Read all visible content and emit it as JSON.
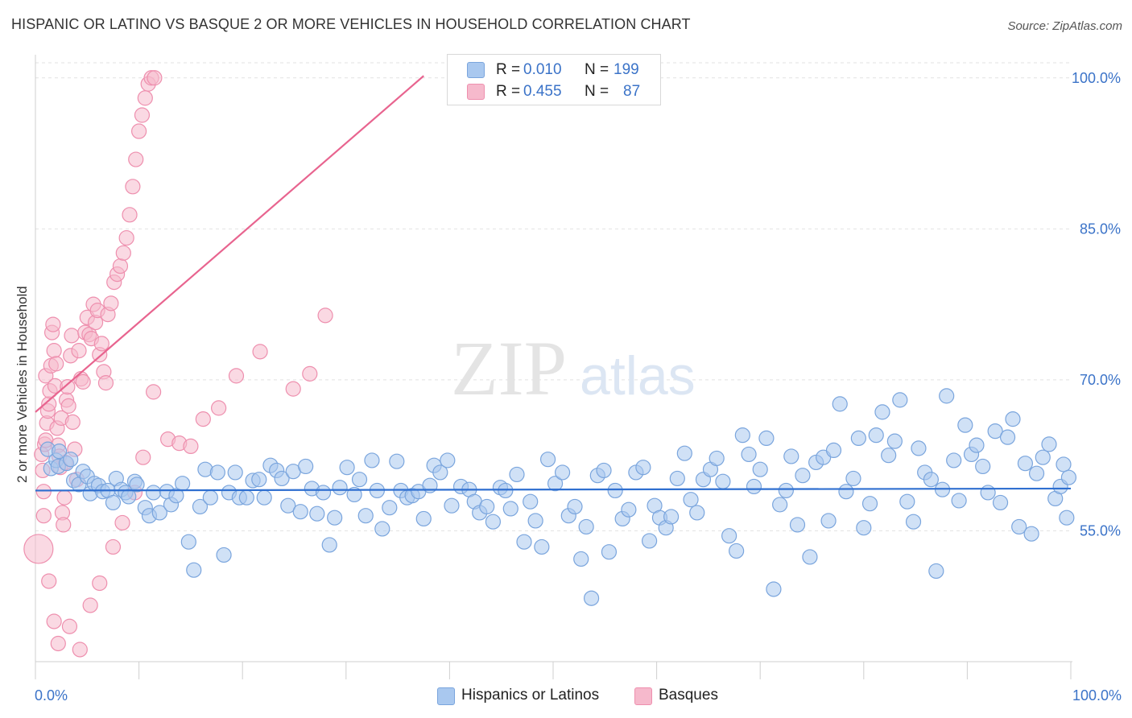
{
  "title": "HISPANIC OR LATINO VS BASQUE 2 OR MORE VEHICLES IN HOUSEHOLD CORRELATION CHART",
  "source": "Source: ZipAtlas.com",
  "watermark": {
    "zip": "ZIP",
    "atlas": "atlas"
  },
  "legend": {
    "rows": [
      {
        "r_label": "R =",
        "r_value": "0.010",
        "n_label": "N =",
        "n_value": "199",
        "color": "#a9c8ef",
        "border": "#7aa5dd"
      },
      {
        "r_label": "R =",
        "r_value": "0.455",
        "n_label": "N =",
        "n_value": "87",
        "color": "#f6b9cc",
        "border": "#ee8fae"
      }
    ]
  },
  "bottom_legend": {
    "items": [
      {
        "label": "Hispanics or Latinos",
        "color": "#a9c8ef",
        "border": "#7aa5dd"
      },
      {
        "label": "Basques",
        "color": "#f6b9cc",
        "border": "#ee8fae"
      }
    ]
  },
  "chart_data": {
    "type": "scatter",
    "title": "HISPANIC OR LATINO VS BASQUE 2 OR MORE VEHICLES IN HOUSEHOLD CORRELATION CHART",
    "xlabel": "",
    "ylabel": "2 or more Vehicles in Household",
    "xlim": [
      0,
      100
    ],
    "ylim": [
      42,
      101.5
    ],
    "x_tick_labels": [
      "0.0%",
      "100.0%"
    ],
    "y_ticks": [
      55,
      70,
      85,
      100
    ],
    "y_tick_labels": [
      "55.0%",
      "70.0%",
      "85.0%",
      "100.0%"
    ],
    "grid": true,
    "legend_position": "top-center",
    "series": [
      {
        "name": "Hispanics or Latinos",
        "color": "#7aa5dd",
        "fill": "#a9c8ef",
        "trend": {
          "x": [
            0,
            100
          ],
          "y": [
            59.0,
            59.2
          ]
        },
        "points": [
          [
            1.2,
            63.1
          ],
          [
            1.5,
            61.2
          ],
          [
            2.0,
            62.0
          ],
          [
            2.3,
            62.9
          ],
          [
            2.2,
            61.4
          ],
          [
            3.0,
            61.7
          ],
          [
            3.4,
            62.1
          ],
          [
            3.7,
            60.0
          ],
          [
            4.2,
            59.6
          ],
          [
            4.6,
            60.9
          ],
          [
            5.0,
            60.4
          ],
          [
            5.3,
            58.7
          ],
          [
            5.7,
            59.7
          ],
          [
            6.1,
            59.5
          ],
          [
            6.5,
            58.9
          ],
          [
            7.0,
            59.0
          ],
          [
            7.5,
            57.8
          ],
          [
            7.8,
            60.2
          ],
          [
            8.3,
            59.1
          ],
          [
            8.7,
            58.8
          ],
          [
            9.0,
            58.4
          ],
          [
            9.6,
            59.9
          ],
          [
            9.8,
            59.6
          ],
          [
            10.6,
            57.3
          ],
          [
            11.0,
            56.5
          ],
          [
            11.4,
            58.8
          ],
          [
            12.0,
            56.8
          ],
          [
            12.7,
            58.9
          ],
          [
            13.1,
            57.6
          ],
          [
            13.6,
            58.5
          ],
          [
            14.2,
            59.7
          ],
          [
            14.8,
            53.9
          ],
          [
            15.3,
            51.1
          ],
          [
            15.9,
            57.4
          ],
          [
            16.4,
            61.1
          ],
          [
            16.9,
            58.3
          ],
          [
            17.6,
            60.8
          ],
          [
            18.2,
            52.6
          ],
          [
            18.7,
            58.8
          ],
          [
            19.3,
            60.8
          ],
          [
            19.7,
            58.3
          ],
          [
            20.4,
            58.3
          ],
          [
            21.0,
            60.0
          ],
          [
            21.6,
            60.1
          ],
          [
            22.1,
            58.3
          ],
          [
            22.7,
            61.5
          ],
          [
            23.3,
            61.0
          ],
          [
            23.8,
            60.2
          ],
          [
            24.4,
            57.5
          ],
          [
            24.9,
            60.9
          ],
          [
            25.6,
            56.9
          ],
          [
            26.1,
            61.4
          ],
          [
            26.7,
            59.2
          ],
          [
            27.2,
            56.7
          ],
          [
            27.8,
            58.8
          ],
          [
            28.4,
            53.6
          ],
          [
            28.9,
            56.3
          ],
          [
            29.4,
            59.3
          ],
          [
            30.1,
            61.3
          ],
          [
            30.8,
            58.6
          ],
          [
            31.3,
            60.1
          ],
          [
            31.9,
            56.5
          ],
          [
            32.5,
            62.0
          ],
          [
            33.0,
            59.0
          ],
          [
            33.5,
            55.2
          ],
          [
            34.2,
            57.3
          ],
          [
            34.9,
            61.9
          ],
          [
            35.3,
            59.0
          ],
          [
            35.9,
            58.3
          ],
          [
            36.4,
            58.5
          ],
          [
            37.0,
            58.9
          ],
          [
            37.5,
            56.2
          ],
          [
            38.1,
            59.5
          ],
          [
            38.5,
            61.5
          ],
          [
            39.1,
            60.8
          ],
          [
            39.8,
            62.0
          ],
          [
            40.2,
            57.5
          ],
          [
            41.1,
            59.4
          ],
          [
            41.9,
            59.1
          ],
          [
            42.4,
            57.9
          ],
          [
            42.9,
            56.8
          ],
          [
            43.6,
            57.4
          ],
          [
            44.2,
            55.9
          ],
          [
            44.9,
            59.3
          ],
          [
            45.4,
            59.0
          ],
          [
            45.9,
            57.2
          ],
          [
            46.5,
            60.6
          ],
          [
            47.2,
            53.9
          ],
          [
            47.8,
            57.9
          ],
          [
            48.3,
            56.0
          ],
          [
            48.9,
            53.4
          ],
          [
            49.5,
            62.1
          ],
          [
            50.2,
            59.7
          ],
          [
            50.9,
            60.8
          ],
          [
            51.5,
            56.5
          ],
          [
            52.1,
            57.4
          ],
          [
            52.7,
            52.2
          ],
          [
            53.2,
            55.4
          ],
          [
            53.7,
            48.3
          ],
          [
            54.3,
            60.5
          ],
          [
            54.9,
            61.0
          ],
          [
            55.4,
            52.9
          ],
          [
            56.0,
            59.0
          ],
          [
            56.7,
            56.2
          ],
          [
            57.3,
            57.1
          ],
          [
            58.0,
            60.8
          ],
          [
            58.7,
            61.3
          ],
          [
            59.3,
            54.0
          ],
          [
            59.8,
            57.5
          ],
          [
            60.3,
            56.3
          ],
          [
            60.9,
            55.3
          ],
          [
            61.4,
            56.4
          ],
          [
            62.0,
            60.2
          ],
          [
            62.7,
            62.7
          ],
          [
            63.3,
            58.1
          ],
          [
            63.9,
            56.8
          ],
          [
            64.5,
            60.1
          ],
          [
            65.2,
            61.1
          ],
          [
            65.8,
            62.2
          ],
          [
            66.4,
            59.9
          ],
          [
            67.0,
            54.5
          ],
          [
            67.7,
            53.0
          ],
          [
            68.3,
            64.5
          ],
          [
            68.9,
            62.6
          ],
          [
            69.4,
            59.4
          ],
          [
            70.0,
            61.1
          ],
          [
            70.6,
            64.2
          ],
          [
            71.3,
            49.2
          ],
          [
            71.9,
            57.6
          ],
          [
            72.5,
            59.0
          ],
          [
            73.0,
            62.4
          ],
          [
            73.6,
            55.6
          ],
          [
            74.1,
            60.5
          ],
          [
            74.8,
            52.4
          ],
          [
            75.4,
            61.8
          ],
          [
            76.1,
            62.3
          ],
          [
            76.6,
            56.0
          ],
          [
            77.1,
            63.0
          ],
          [
            77.7,
            67.6
          ],
          [
            78.3,
            58.9
          ],
          [
            79.0,
            60.2
          ],
          [
            79.5,
            64.2
          ],
          [
            80.0,
            55.3
          ],
          [
            80.6,
            57.7
          ],
          [
            81.2,
            64.5
          ],
          [
            81.8,
            66.8
          ],
          [
            82.4,
            62.5
          ],
          [
            83.0,
            63.9
          ],
          [
            83.5,
            68.0
          ],
          [
            84.2,
            57.9
          ],
          [
            84.8,
            55.9
          ],
          [
            85.3,
            63.2
          ],
          [
            85.9,
            60.8
          ],
          [
            86.5,
            60.1
          ],
          [
            87.0,
            51.0
          ],
          [
            87.6,
            59.1
          ],
          [
            88.0,
            68.4
          ],
          [
            88.7,
            62.0
          ],
          [
            89.2,
            58.0
          ],
          [
            89.8,
            65.5
          ],
          [
            90.4,
            62.6
          ],
          [
            90.9,
            63.5
          ],
          [
            91.5,
            61.4
          ],
          [
            92.0,
            58.8
          ],
          [
            92.7,
            64.9
          ],
          [
            93.2,
            57.8
          ],
          [
            93.9,
            64.3
          ],
          [
            94.4,
            66.1
          ],
          [
            95.0,
            55.4
          ],
          [
            95.6,
            61.7
          ],
          [
            96.2,
            54.7
          ],
          [
            96.7,
            60.7
          ],
          [
            97.3,
            62.3
          ],
          [
            97.9,
            63.6
          ],
          [
            98.5,
            58.2
          ],
          [
            99.0,
            59.4
          ],
          [
            99.3,
            61.6
          ],
          [
            99.6,
            56.3
          ],
          [
            99.8,
            60.3
          ]
        ]
      },
      {
        "name": "Basques",
        "color": "#ee8fae",
        "fill": "#f6b9cc",
        "trend": {
          "x": [
            0,
            37.5
          ],
          "y": [
            66.8,
            100.2
          ]
        },
        "points": [
          [
            0.3,
            53.2
          ],
          [
            0.6,
            62.6
          ],
          [
            0.7,
            61.0
          ],
          [
            0.8,
            58.9
          ],
          [
            0.9,
            63.6
          ],
          [
            1.0,
            64.0
          ],
          [
            1.0,
            70.4
          ],
          [
            1.1,
            65.7
          ],
          [
            1.2,
            66.9
          ],
          [
            1.3,
            67.6
          ],
          [
            1.4,
            68.9
          ],
          [
            1.5,
            71.4
          ],
          [
            1.6,
            74.7
          ],
          [
            1.7,
            75.5
          ],
          [
            1.8,
            72.9
          ],
          [
            1.9,
            69.4
          ],
          [
            2.0,
            71.6
          ],
          [
            2.1,
            65.2
          ],
          [
            2.2,
            63.5
          ],
          [
            2.3,
            62.4
          ],
          [
            2.4,
            61.3
          ],
          [
            2.5,
            66.2
          ],
          [
            2.6,
            56.8
          ],
          [
            2.7,
            55.6
          ],
          [
            2.8,
            58.3
          ],
          [
            2.9,
            61.8
          ],
          [
            3.0,
            68.0
          ],
          [
            3.1,
            69.3
          ],
          [
            3.2,
            67.4
          ],
          [
            3.4,
            72.4
          ],
          [
            3.5,
            74.4
          ],
          [
            3.6,
            65.8
          ],
          [
            3.8,
            63.1
          ],
          [
            4.0,
            60.1
          ],
          [
            4.2,
            72.9
          ],
          [
            4.4,
            70.1
          ],
          [
            4.6,
            69.8
          ],
          [
            4.8,
            74.7
          ],
          [
            5.0,
            76.2
          ],
          [
            5.2,
            74.5
          ],
          [
            5.4,
            74.1
          ],
          [
            5.6,
            77.5
          ],
          [
            5.8,
            75.7
          ],
          [
            6.0,
            76.9
          ],
          [
            6.2,
            72.5
          ],
          [
            6.4,
            73.6
          ],
          [
            6.6,
            70.8
          ],
          [
            6.8,
            69.7
          ],
          [
            7.0,
            76.5
          ],
          [
            7.3,
            77.6
          ],
          [
            7.6,
            79.7
          ],
          [
            7.9,
            80.5
          ],
          [
            8.2,
            81.3
          ],
          [
            8.5,
            82.6
          ],
          [
            8.8,
            84.1
          ],
          [
            9.1,
            86.4
          ],
          [
            9.4,
            89.2
          ],
          [
            9.7,
            91.9
          ],
          [
            10.0,
            94.7
          ],
          [
            10.3,
            96.3
          ],
          [
            10.6,
            98.0
          ],
          [
            10.9,
            99.4
          ],
          [
            11.2,
            100.0
          ],
          [
            11.5,
            100.0
          ],
          [
            0.8,
            56.5
          ],
          [
            1.3,
            50.0
          ],
          [
            1.8,
            46.0
          ],
          [
            2.2,
            43.8
          ],
          [
            3.3,
            45.5
          ],
          [
            4.3,
            43.2
          ],
          [
            5.3,
            47.6
          ],
          [
            6.2,
            49.8
          ],
          [
            7.5,
            53.4
          ],
          [
            8.4,
            55.8
          ],
          [
            9.6,
            58.8
          ],
          [
            10.4,
            62.3
          ],
          [
            11.4,
            68.8
          ],
          [
            12.8,
            64.1
          ],
          [
            13.9,
            63.7
          ],
          [
            15.0,
            63.4
          ],
          [
            16.2,
            66.1
          ],
          [
            17.7,
            67.2
          ],
          [
            19.4,
            70.4
          ],
          [
            21.7,
            72.8
          ],
          [
            24.9,
            69.1
          ],
          [
            26.5,
            70.6
          ],
          [
            28.0,
            76.4
          ]
        ]
      }
    ]
  }
}
